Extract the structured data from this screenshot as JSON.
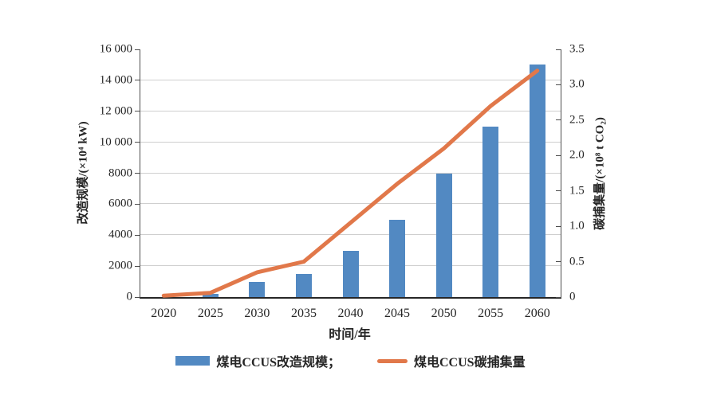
{
  "chart_data": {
    "type": "bar",
    "subtype": "bar+line dual-axis",
    "categories": [
      "2020",
      "2025",
      "2030",
      "2035",
      "2040",
      "2045",
      "2050",
      "2055",
      "2060"
    ],
    "series": [
      {
        "name": "煤电CCUS改造规模",
        "type": "bar",
        "axis": "left",
        "color": "#5289c2",
        "values": [
          0,
          200,
          1000,
          1500,
          3000,
          5000,
          8000,
          11000,
          15000
        ]
      },
      {
        "name": "煤电CCUS碳捕集量",
        "type": "line",
        "axis": "right",
        "color": "#e1784a",
        "values": [
          0.02,
          0.06,
          0.35,
          0.5,
          1.05,
          1.6,
          2.1,
          2.7,
          3.2
        ]
      }
    ],
    "title": "",
    "xlabel": "时间/年",
    "left_axis": {
      "label": "改造规模/(×10⁴ kW)",
      "min": 0,
      "max": 16000,
      "step": 2000,
      "tick_labels": [
        "0",
        "2000",
        "4000",
        "6000",
        "8000",
        "10 000",
        "12 000",
        "14 000",
        "16 000"
      ]
    },
    "right_axis": {
      "label": "碳捕集量/(×10⁸ t CO₂)",
      "min": 0,
      "max": 3.5,
      "step": 0.5,
      "tick_labels": [
        "0",
        "0.5",
        "1.0",
        "1.5",
        "2.0",
        "2.5",
        "3.0",
        "3.5"
      ]
    },
    "grid": true,
    "legend_position": "bottom",
    "legend": [
      {
        "label": "煤电CCUS改造规模；",
        "swatch": "bar"
      },
      {
        "label": "煤电CCUS碳捕集量",
        "swatch": "line"
      }
    ]
  },
  "colors": {
    "bar": "#5289c2",
    "line": "#e1784a",
    "gridline": "#cfcfcf",
    "axis": "#4d4d4d",
    "text": "#262626",
    "background": "#ffffff"
  }
}
